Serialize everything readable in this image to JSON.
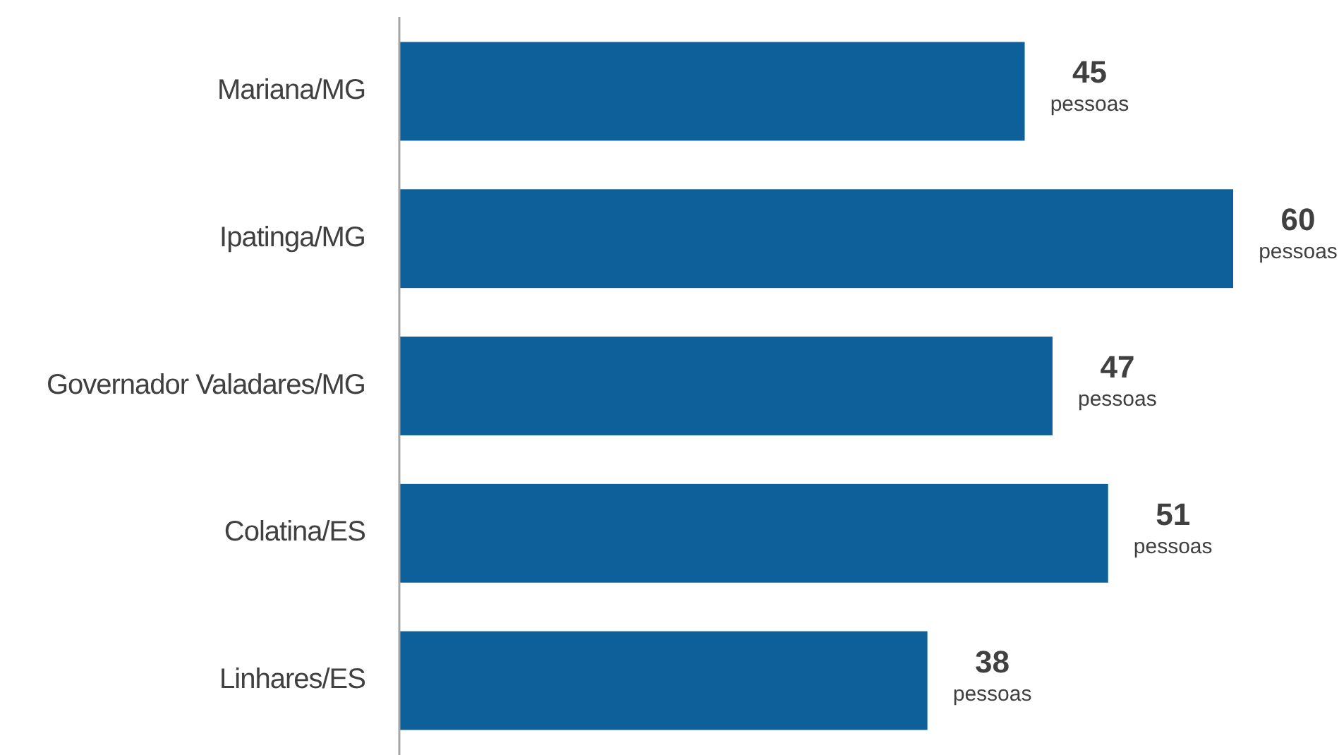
{
  "chart_data": {
    "type": "bar",
    "orientation": "horizontal",
    "categories": [
      "Mariana/MG",
      "Ipatinga/MG",
      "Governador Valadares/MG",
      "Colatina/ES",
      "Linhares/ES"
    ],
    "values": [
      45,
      60,
      47,
      51,
      38
    ],
    "color": "#0d6099",
    "value_labels": [
      "45 pessoas",
      "60 pessoas",
      "47 pessoas",
      "51 pessoas",
      "38 pessoas"
    ]
  }
}
